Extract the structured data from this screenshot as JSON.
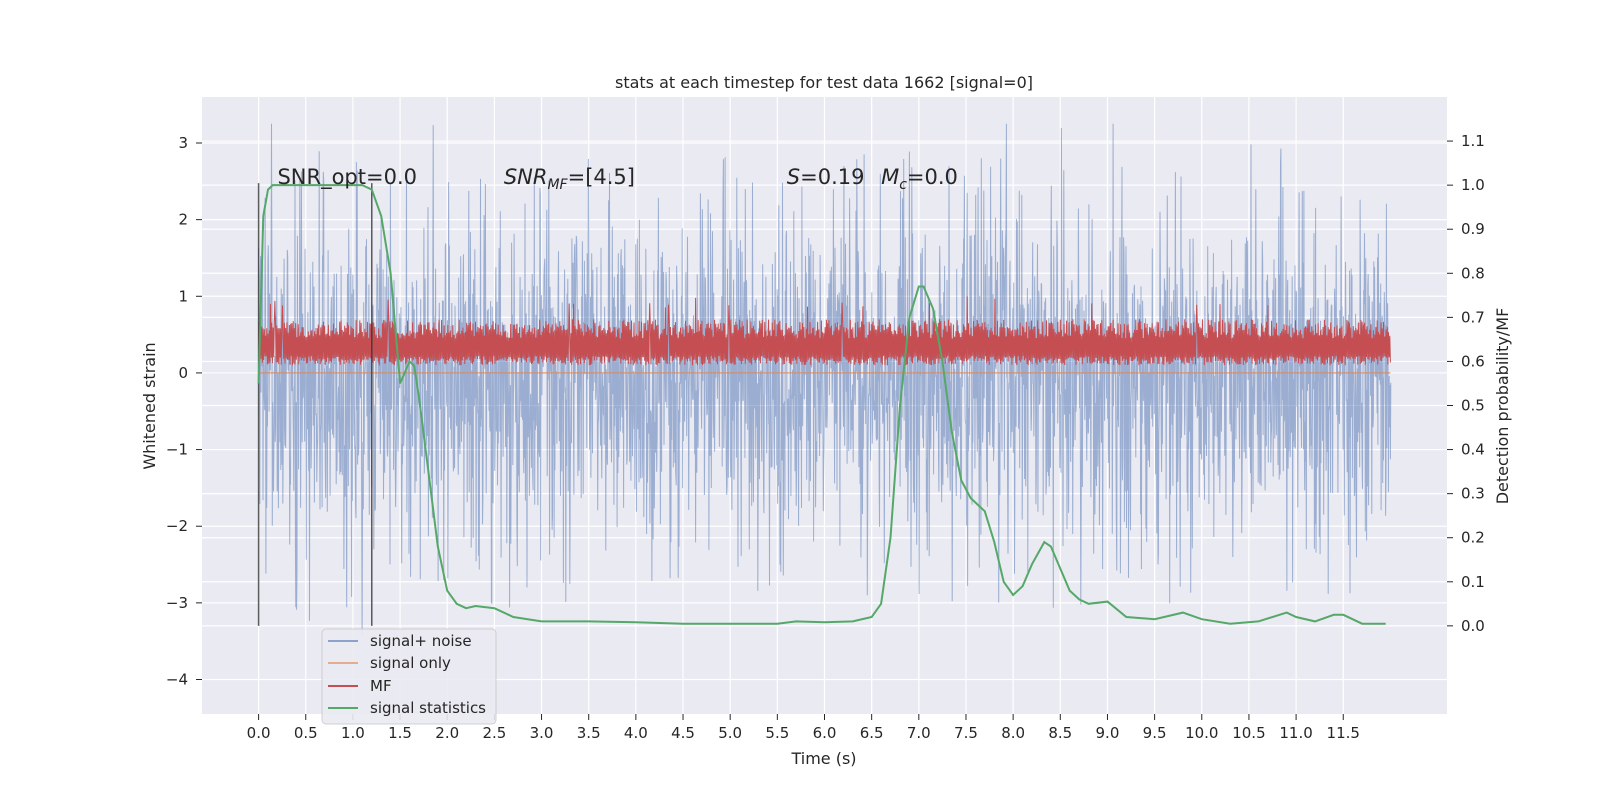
{
  "chart_data": {
    "type": "line",
    "title": "stats at each timestep for test data 1662 [signal=0]",
    "xlabel": "Time (s)",
    "ylabel_left": "Whitened strain",
    "ylabel_right": "Detection probability/MF",
    "xlim": [
      -0.6,
      12.6
    ],
    "ylim_left": [
      -4.45,
      3.6
    ],
    "ylim_right": [
      -0.2,
      1.2
    ],
    "grid": true,
    "x_ticks": [
      "0.0",
      "0.5",
      "1.0",
      "1.5",
      "2.0",
      "2.5",
      "3.0",
      "3.5",
      "4.0",
      "4.5",
      "5.0",
      "5.5",
      "6.0",
      "6.5",
      "7.0",
      "7.5",
      "8.0",
      "8.5",
      "9.0",
      "9.5",
      "10.0",
      "10.5",
      "11.0",
      "11.5"
    ],
    "y_ticks_left": [
      "3",
      "2",
      "1",
      "0",
      "−1",
      "−2",
      "−3",
      "−4"
    ],
    "y_ticks_right": [
      "1.1",
      "1.0",
      "0.9",
      "0.8",
      "0.7",
      "0.6",
      "0.5",
      "0.4",
      "0.3",
      "0.2",
      "0.1",
      "0.0"
    ],
    "annotations": [
      {
        "id": "snr_opt",
        "text": "SNR_opt=0.0",
        "x": 0.2,
        "y_right": 1.0
      },
      {
        "id": "snr_mf",
        "text": "SNR",
        "sub": "MF",
        "tail": "=[4.5]",
        "x": 2.6,
        "y_right": 1.0
      },
      {
        "id": "s_val",
        "text": "S",
        "tail": "=0.19",
        "x": 5.6,
        "y_right": 1.0
      },
      {
        "id": "mc_val",
        "text": "M",
        "sub": "c",
        "tail": "=0.0",
        "x": 6.6,
        "y_right": 1.0
      }
    ],
    "vertical_lines": [
      0.0,
      1.2
    ],
    "legend": {
      "placement": "lower-left",
      "entries": [
        "signal+ noise",
        "signal only",
        "MF",
        "signal statistics"
      ]
    },
    "series": [
      {
        "name": "signal+ noise",
        "color": "#4c72b0",
        "alpha": 0.5,
        "kind": "noise",
        "axis": "left",
        "envelope": {
          "x": [
            0.0,
            12.0
          ],
          "mean": -0.1,
          "std": 0.95,
          "max": 3.25,
          "min": -4.1
        }
      },
      {
        "name": "signal only",
        "color": "#dd8452",
        "axis": "left",
        "x": [
          0.0,
          12.0
        ],
        "y": [
          0.0,
          0.0
        ]
      },
      {
        "name": "MF",
        "color": "#c44e52",
        "kind": "noise",
        "axis": "left",
        "envelope": {
          "x": [
            0.0,
            12.0
          ],
          "low": 0.0,
          "high": 1.0,
          "typical_low": 0.1,
          "typical_high": 0.6
        }
      },
      {
        "name": "signal statistics",
        "color": "#55a868",
        "axis": "right",
        "x": [
          0.0,
          0.05,
          0.1,
          0.15,
          0.2,
          0.3,
          0.4,
          0.6,
          0.8,
          1.0,
          1.1,
          1.2,
          1.3,
          1.4,
          1.5,
          1.6,
          1.65,
          1.7,
          1.8,
          1.9,
          2.0,
          2.1,
          2.2,
          2.3,
          2.5,
          2.7,
          3.0,
          3.5,
          4.0,
          4.5,
          5.0,
          5.5,
          5.7,
          6.0,
          6.3,
          6.5,
          6.6,
          6.7,
          6.8,
          6.9,
          7.0,
          7.05,
          7.15,
          7.25,
          7.35,
          7.45,
          7.55,
          7.7,
          7.8,
          7.9,
          8.0,
          8.1,
          8.2,
          8.33,
          8.4,
          8.5,
          8.6,
          8.7,
          8.8,
          9.0,
          9.2,
          9.5,
          9.8,
          10.0,
          10.3,
          10.6,
          10.9,
          11.0,
          11.2,
          11.4,
          11.5,
          11.7,
          11.95
        ],
        "y": [
          0.55,
          0.93,
          0.99,
          1.0,
          1.0,
          1.0,
          1.0,
          1.0,
          1.0,
          1.0,
          1.0,
          0.99,
          0.93,
          0.8,
          0.55,
          0.6,
          0.59,
          0.52,
          0.35,
          0.18,
          0.08,
          0.05,
          0.04,
          0.045,
          0.04,
          0.02,
          0.01,
          0.01,
          0.008,
          0.005,
          0.005,
          0.005,
          0.01,
          0.008,
          0.01,
          0.02,
          0.05,
          0.2,
          0.5,
          0.7,
          0.77,
          0.77,
          0.72,
          0.6,
          0.44,
          0.33,
          0.29,
          0.26,
          0.19,
          0.1,
          0.07,
          0.09,
          0.14,
          0.19,
          0.18,
          0.13,
          0.08,
          0.06,
          0.05,
          0.055,
          0.02,
          0.015,
          0.03,
          0.015,
          0.005,
          0.01,
          0.03,
          0.02,
          0.01,
          0.025,
          0.025,
          0.005,
          0.005
        ]
      }
    ]
  }
}
